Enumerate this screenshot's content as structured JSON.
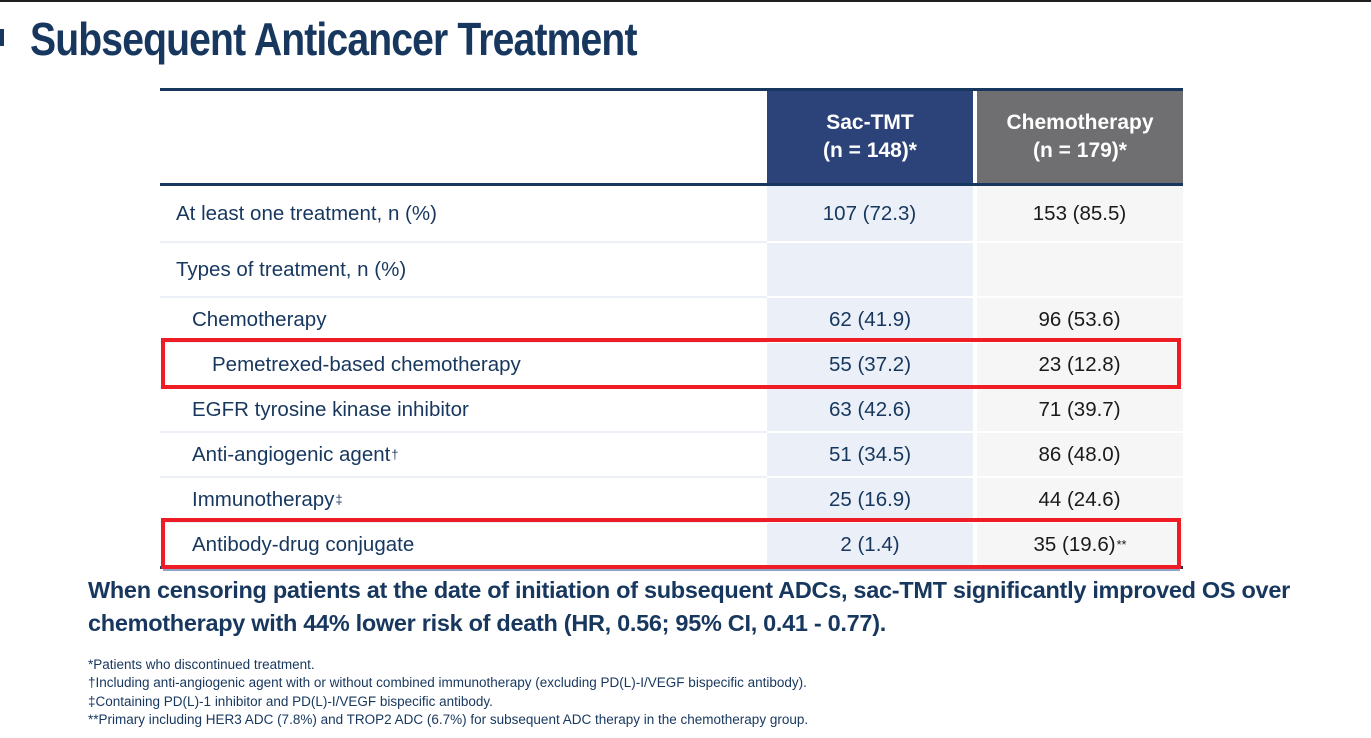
{
  "slide": {
    "title": "Subsequent Anticancer Treatment"
  },
  "table": {
    "columns": [
      {
        "label": "Sac-TMT",
        "sub": "(n = 148)*"
      },
      {
        "label": "Chemotherapy",
        "sub": "(n = 179)*"
      }
    ],
    "rows": [
      {
        "label": "At least one treatment, n (%)",
        "sacTmt": "107 (72.3)",
        "chemo": "153 (85.5)"
      },
      {
        "label": "Types of treatment, n (%)",
        "sacTmt": "",
        "chemo": ""
      },
      {
        "label": "Chemotherapy",
        "sacTmt": "62 (41.9)",
        "chemo": "96 (53.6)"
      },
      {
        "label": "Pemetrexed-based chemotherapy",
        "sacTmt": "55 (37.2)",
        "chemo": "23 (12.8)",
        "highlighted": true
      },
      {
        "label": "EGFR tyrosine kinase inhibitor",
        "sacTmt": "63 (42.6)",
        "chemo": "71 (39.7)"
      },
      {
        "label": "Anti-angiogenic agent",
        "labelSup": "†",
        "sacTmt": "51 (34.5)",
        "chemo": "86 (48.0)"
      },
      {
        "label": "Immunotherapy",
        "labelSup": "‡",
        "sacTmt": "25 (16.9)",
        "chemo": "44 (24.6)"
      },
      {
        "label": "Antibody-drug conjugate",
        "sacTmt": "2 (1.4)",
        "chemo": "35 (19.6)",
        "chemoSup": "**",
        "highlighted": true
      }
    ]
  },
  "statement": "When censoring patients at the date of initiation of subsequent ADCs, sac-TMT significantly improved OS over chemotherapy with 44% lower risk of death (HR, 0.56; 95% CI, 0.41 - 0.77).",
  "footnotes": [
    "*Patients who discontinued treatment.",
    "†Including anti-angiogenic agent with or without combined immunotherapy (excluding PD(L)-I/VEGF bispecific antibody).",
    "‡Containing PD(L)-1 inhibitor and PD(L)-I/VEGF bispecific antibody.",
    "**Primary including HER3 ADC (7.8%) and TROP2 ADC (6.7%) for subsequent ADC therapy in the chemotherapy group."
  ],
  "colors": {
    "navy_text": "#17375E",
    "header_blue": "#2C4379",
    "header_gray": "#6F6F71",
    "col_blue_bg": "#EAEFF8",
    "col_gray_bg": "#F6F6F7",
    "value_dark": "#1A1A1A",
    "highlight_red": "#EE1C25",
    "table_border": "#17375E"
  }
}
